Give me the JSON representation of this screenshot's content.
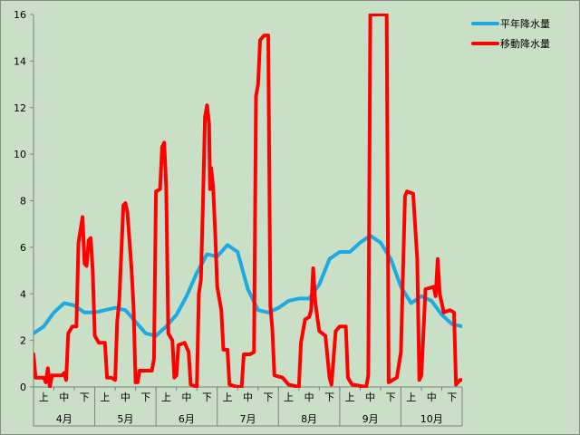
{
  "chart_data": {
    "type": "line",
    "title": "",
    "xlabel": "",
    "ylabel": "",
    "ylim": [
      0,
      16
    ],
    "ytick_step": 2,
    "grid": false,
    "legend_position": "top-right",
    "months": [
      "4月",
      "5月",
      "6月",
      "7月",
      "8月",
      "9月",
      "10月"
    ],
    "subperiods": [
      "上",
      "中",
      "下"
    ],
    "x_range": [
      0,
      21
    ],
    "series": [
      {
        "name": "平年降水量",
        "color": "#1fa9e1",
        "points": [
          [
            0,
            2.3
          ],
          [
            0.5,
            2.6
          ],
          [
            1.0,
            3.2
          ],
          [
            1.5,
            3.6
          ],
          [
            2.0,
            3.5
          ],
          [
            2.5,
            3.2
          ],
          [
            3.0,
            3.2
          ],
          [
            3.5,
            3.3
          ],
          [
            4.0,
            3.4
          ],
          [
            4.5,
            3.3
          ],
          [
            5.0,
            2.8
          ],
          [
            5.5,
            2.3
          ],
          [
            6.0,
            2.2
          ],
          [
            6.5,
            2.6
          ],
          [
            7.0,
            3.1
          ],
          [
            7.5,
            3.9
          ],
          [
            8.0,
            4.9
          ],
          [
            8.5,
            5.7
          ],
          [
            9.0,
            5.6
          ],
          [
            9.5,
            6.1
          ],
          [
            10.0,
            5.8
          ],
          [
            10.5,
            4.2
          ],
          [
            11.0,
            3.3
          ],
          [
            11.5,
            3.2
          ],
          [
            12.0,
            3.4
          ],
          [
            12.5,
            3.7
          ],
          [
            13.0,
            3.8
          ],
          [
            13.5,
            3.8
          ],
          [
            14.0,
            4.4
          ],
          [
            14.5,
            5.5
          ],
          [
            15.0,
            5.8
          ],
          [
            15.5,
            5.8
          ],
          [
            16.0,
            6.2
          ],
          [
            16.5,
            6.5
          ],
          [
            17.0,
            6.2
          ],
          [
            17.5,
            5.5
          ],
          [
            18.0,
            4.3
          ],
          [
            18.5,
            3.6
          ],
          [
            19.0,
            3.9
          ],
          [
            19.5,
            3.7
          ],
          [
            20.0,
            3.1
          ],
          [
            20.5,
            2.7
          ],
          [
            21.0,
            2.6
          ]
        ]
      },
      {
        "name": "移動降水量",
        "color": "#ff0000",
        "points": [
          [
            0.0,
            1.4
          ],
          [
            0.1,
            0.4
          ],
          [
            0.3,
            0.4
          ],
          [
            0.5,
            0.4
          ],
          [
            0.6,
            0.2
          ],
          [
            0.7,
            0.8
          ],
          [
            0.8,
            0.0
          ],
          [
            0.9,
            0.5
          ],
          [
            1.2,
            0.5
          ],
          [
            1.4,
            0.5
          ],
          [
            1.5,
            0.6
          ],
          [
            1.6,
            0.3
          ],
          [
            1.7,
            2.3
          ],
          [
            1.9,
            2.6
          ],
          [
            2.1,
            2.6
          ],
          [
            2.2,
            6.2
          ],
          [
            2.4,
            7.3
          ],
          [
            2.5,
            5.3
          ],
          [
            2.6,
            5.2
          ],
          [
            2.7,
            6.3
          ],
          [
            2.8,
            6.4
          ],
          [
            2.9,
            5.0
          ],
          [
            3.0,
            2.2
          ],
          [
            3.2,
            1.9
          ],
          [
            3.5,
            1.9
          ],
          [
            3.6,
            0.4
          ],
          [
            3.8,
            0.4
          ],
          [
            4.0,
            0.3
          ],
          [
            4.1,
            2.8
          ],
          [
            4.2,
            3.7
          ],
          [
            4.4,
            7.8
          ],
          [
            4.5,
            7.9
          ],
          [
            4.6,
            7.5
          ],
          [
            4.8,
            5.1
          ],
          [
            4.9,
            3.4
          ],
          [
            5.0,
            0.2
          ],
          [
            5.1,
            0.2
          ],
          [
            5.2,
            0.7
          ],
          [
            5.5,
            0.7
          ],
          [
            5.8,
            0.7
          ],
          [
            5.9,
            1.2
          ],
          [
            6.0,
            8.4
          ],
          [
            6.2,
            8.5
          ],
          [
            6.3,
            10.3
          ],
          [
            6.4,
            10.5
          ],
          [
            6.5,
            8.6
          ],
          [
            6.6,
            2.3
          ],
          [
            6.8,
            2.0
          ],
          [
            6.9,
            0.4
          ],
          [
            7.0,
            0.5
          ],
          [
            7.1,
            1.8
          ],
          [
            7.4,
            1.9
          ],
          [
            7.6,
            1.5
          ],
          [
            7.7,
            0.1
          ],
          [
            8.0,
            0.0
          ],
          [
            8.1,
            4.0
          ],
          [
            8.2,
            4.6
          ],
          [
            8.3,
            7.8
          ],
          [
            8.4,
            11.6
          ],
          [
            8.5,
            12.1
          ],
          [
            8.6,
            11.3
          ],
          [
            8.65,
            8.5
          ],
          [
            8.7,
            9.4
          ],
          [
            8.8,
            8.6
          ],
          [
            8.9,
            6.6
          ],
          [
            9.0,
            4.3
          ],
          [
            9.2,
            3.3
          ],
          [
            9.3,
            1.6
          ],
          [
            9.5,
            1.6
          ],
          [
            9.6,
            0.1
          ],
          [
            10.0,
            0.0
          ],
          [
            10.2,
            0.0
          ],
          [
            10.3,
            1.4
          ],
          [
            10.6,
            1.4
          ],
          [
            10.8,
            1.5
          ],
          [
            10.9,
            12.5
          ],
          [
            11.0,
            13.0
          ],
          [
            11.1,
            14.9
          ],
          [
            11.3,
            15.1
          ],
          [
            11.5,
            15.1
          ],
          [
            11.6,
            3.5
          ],
          [
            11.7,
            2.5
          ],
          [
            11.8,
            0.5
          ],
          [
            12.2,
            0.4
          ],
          [
            12.5,
            0.1
          ],
          [
            13.0,
            0.0
          ],
          [
            13.1,
            1.9
          ],
          [
            13.3,
            2.9
          ],
          [
            13.5,
            3.0
          ],
          [
            13.6,
            3.3
          ],
          [
            13.7,
            5.1
          ],
          [
            13.8,
            3.7
          ],
          [
            13.9,
            3.0
          ],
          [
            14.0,
            2.4
          ],
          [
            14.3,
            2.2
          ],
          [
            14.5,
            0.4
          ],
          [
            14.6,
            0.1
          ],
          [
            14.8,
            2.4
          ],
          [
            15.0,
            2.6
          ],
          [
            15.3,
            2.6
          ],
          [
            15.4,
            0.4
          ],
          [
            15.6,
            0.1
          ],
          [
            16.3,
            0.0
          ],
          [
            16.4,
            0.5
          ],
          [
            16.5,
            16.0
          ],
          [
            17.3,
            16.0
          ],
          [
            17.4,
            0.2
          ],
          [
            17.8,
            0.4
          ],
          [
            18.0,
            1.5
          ],
          [
            18.2,
            8.2
          ],
          [
            18.3,
            8.4
          ],
          [
            18.6,
            8.3
          ],
          [
            18.8,
            5.5
          ],
          [
            18.9,
            0.3
          ],
          [
            19.0,
            0.5
          ],
          [
            19.2,
            4.2
          ],
          [
            19.6,
            4.3
          ],
          [
            19.7,
            3.9
          ],
          [
            19.8,
            5.5
          ],
          [
            19.9,
            4.0
          ],
          [
            20.1,
            3.2
          ],
          [
            20.4,
            3.3
          ],
          [
            20.6,
            3.2
          ],
          [
            20.7,
            0.1
          ],
          [
            20.9,
            0.3
          ],
          [
            21.0,
            0.3
          ]
        ]
      }
    ]
  }
}
